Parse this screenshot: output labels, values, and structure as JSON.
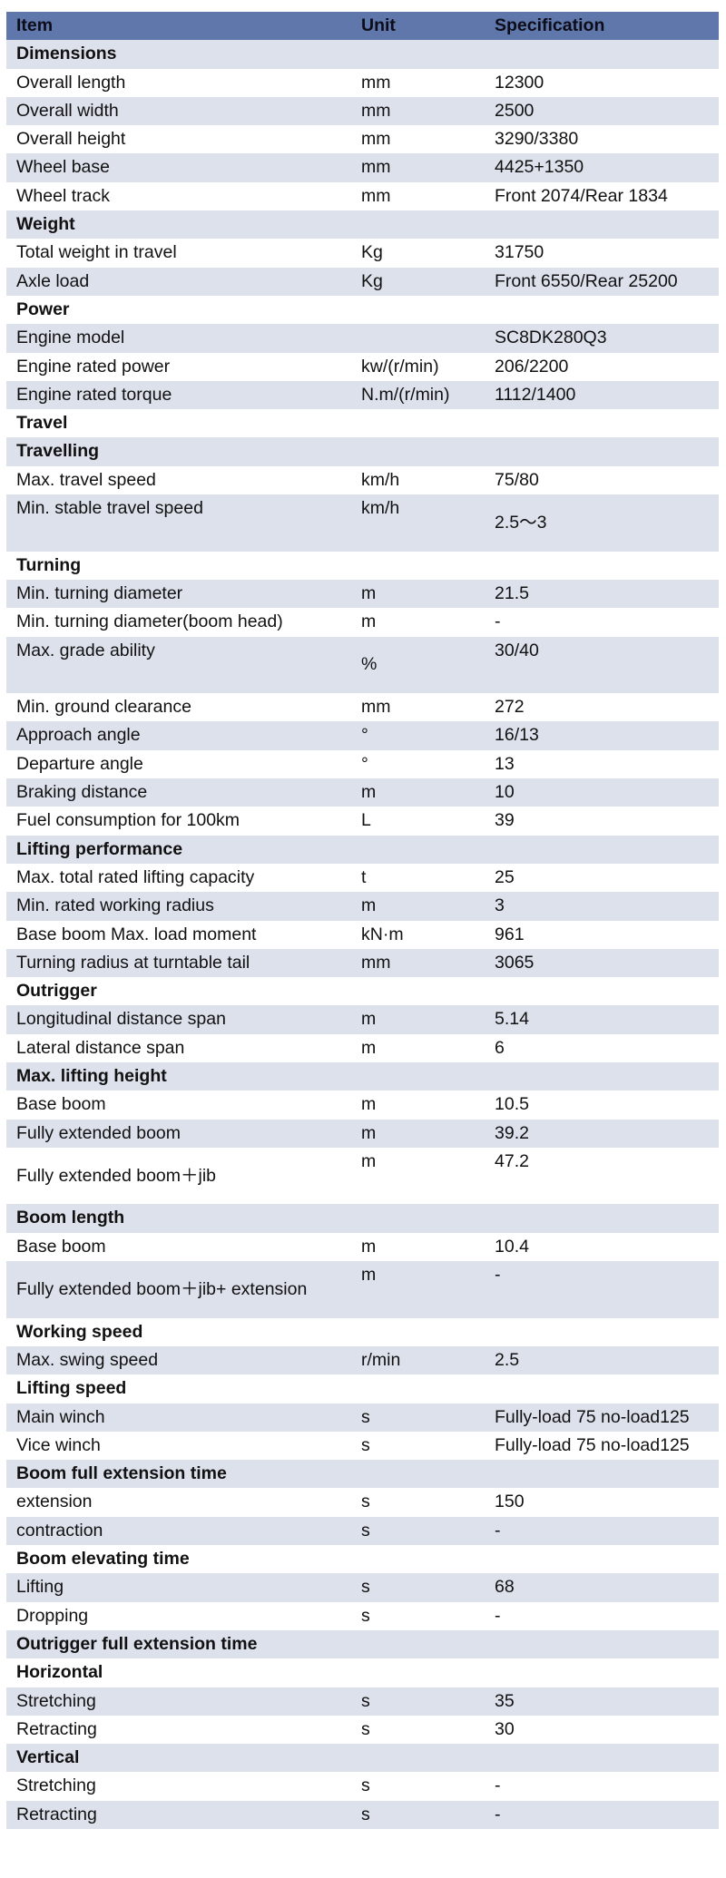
{
  "header": {
    "item": "Item",
    "unit": "Unit",
    "spec": "Specification"
  },
  "rows": [
    {
      "item": "Dimensions",
      "unit": "",
      "spec": "",
      "section": true
    },
    {
      "item": "Overall length",
      "unit": "mm",
      "spec": "12300"
    },
    {
      "item": "Overall width",
      "unit": "mm",
      "spec": "2500"
    },
    {
      "item": "Overall height",
      "unit": "mm",
      "spec": "3290/3380"
    },
    {
      "item": "Wheel base",
      "unit": "mm",
      "spec": "4425+1350"
    },
    {
      "item": "Wheel track",
      "unit": "mm",
      "spec": "Front 2074/Rear 1834"
    },
    {
      "item": "Weight",
      "unit": "",
      "spec": "",
      "section": true
    },
    {
      "item": "Total weight in travel",
      "unit": "Kg",
      "spec": "31750"
    },
    {
      "item": "Axle load",
      "unit": "Kg",
      "spec": "Front 6550/Rear 25200"
    },
    {
      "item": "Power",
      "unit": "",
      "spec": "",
      "section": true
    },
    {
      "item": "Engine model",
      "unit": "",
      "spec": "SC8DK280Q3"
    },
    {
      "item": "Engine rated power",
      "unit": "kw/(r/min)",
      "spec": "206/2200"
    },
    {
      "item": "Engine rated torque",
      "unit": "N.m/(r/min)",
      "spec": "1112/1400"
    },
    {
      "item": "Travel",
      "unit": "",
      "spec": "",
      "section": true
    },
    {
      "item": "Travelling",
      "unit": "",
      "spec": "",
      "section": true
    },
    {
      "item": "Max. travel speed",
      "unit": "km/h",
      "spec": "75/80"
    },
    {
      "item": "Min. stable travel speed",
      "unit": "km/h",
      "spec": "2.5～3",
      "tall": true,
      "item_pos": "top",
      "unit_pos": "top",
      "spec_pos": "mid"
    },
    {
      "item": "Turning",
      "unit": "",
      "spec": "",
      "section": true
    },
    {
      "item": "Min. turning diameter",
      "unit": "m",
      "spec": "21.5"
    },
    {
      "item": "Min. turning diameter(boom head)",
      "unit": "m",
      "spec": "-"
    },
    {
      "item": "Max. grade ability",
      "unit": "%",
      "spec": "30/40",
      "tall": true,
      "item_pos": "top",
      "unit_pos": "mid",
      "spec_pos": "top"
    },
    {
      "item": "Min. ground clearance",
      "unit": "mm",
      "spec": "272"
    },
    {
      "item": "Approach angle",
      "unit": "°",
      "spec": "16/13"
    },
    {
      "item": "Departure angle",
      "unit": "°",
      "spec": "13"
    },
    {
      "item": "Braking distance",
      "unit": "m",
      "spec": "10"
    },
    {
      "item": "Fuel consumption for 100km",
      "unit": "L",
      "spec": "39"
    },
    {
      "item": "Lifting performance",
      "unit": "",
      "spec": "",
      "section": true
    },
    {
      "item": "Max. total rated lifting capacity",
      "unit": "t",
      "spec": "25"
    },
    {
      "item": "Min. rated working radius",
      "unit": "m",
      "spec": "3"
    },
    {
      "item": "Base boom Max. load moment",
      "unit": "kN·m",
      "spec": "961"
    },
    {
      "item": "Turning radius at turntable tail",
      "unit": "mm",
      "spec": "3065"
    },
    {
      "item": "Outrigger",
      "unit": "",
      "spec": "",
      "section": true
    },
    {
      "item": "Longitudinal distance span",
      "unit": "m",
      "spec": "5.14"
    },
    {
      "item": "Lateral distance span",
      "unit": "m",
      "spec": "6"
    },
    {
      "item": "Max. lifting height",
      "unit": "",
      "spec": "",
      "section": true
    },
    {
      "item": "Base boom",
      "unit": "m",
      "spec": "10.5"
    },
    {
      "item": "Fully extended boom",
      "unit": "m",
      "spec": "39.2"
    },
    {
      "item": "Fully extended boom＋jib",
      "unit": "m",
      "spec": "47.2",
      "tall": true,
      "item_pos": "mid",
      "unit_pos": "top",
      "spec_pos": "top"
    },
    {
      "item": "Boom length",
      "unit": "",
      "spec": "",
      "section": true
    },
    {
      "item": "Base boom",
      "unit": "m",
      "spec": "10.4"
    },
    {
      "item": "Fully extended boom＋jib+ extension",
      "unit": "m",
      "spec": "-",
      "tall": true,
      "item_pos": "mid",
      "unit_pos": "top",
      "spec_pos": "top"
    },
    {
      "item": "Working speed",
      "unit": "",
      "spec": "",
      "section": true
    },
    {
      "item": "Max. swing speed",
      "unit": "r/min",
      "spec": "2.5"
    },
    {
      "item": "Lifting speed",
      "unit": "",
      "spec": "",
      "section": true
    },
    {
      "item": "Main winch",
      "unit": "s",
      "spec": "Fully-load 75 no-load125"
    },
    {
      "item": "Vice winch",
      "unit": "s",
      "spec": "Fully-load 75 no-load125"
    },
    {
      "item": "Boom full extension time",
      "unit": "",
      "spec": "",
      "section": true
    },
    {
      "item": "extension",
      "unit": "s",
      "spec": "150"
    },
    {
      "item": "contraction",
      "unit": "s",
      "spec": "-"
    },
    {
      "item": "Boom elevating time",
      "unit": "",
      "spec": "",
      "section": true
    },
    {
      "item": "Lifting",
      "unit": "s",
      "spec": "68"
    },
    {
      "item": "Dropping",
      "unit": "s",
      "spec": "-"
    },
    {
      "item": "Outrigger full extension time",
      "unit": "",
      "spec": "",
      "section": true
    },
    {
      "item": "Horizontal",
      "unit": "",
      "spec": "",
      "section": true
    },
    {
      "item": "Stretching",
      "unit": "s",
      "spec": "35"
    },
    {
      "item": "Retracting",
      "unit": "s",
      "spec": "30"
    },
    {
      "item": "Vertical",
      "unit": "",
      "spec": "",
      "section": true
    },
    {
      "item": "Stretching",
      "unit": "s",
      "spec": "-"
    },
    {
      "item": "Retracting",
      "unit": "s",
      "spec": "-"
    }
  ]
}
